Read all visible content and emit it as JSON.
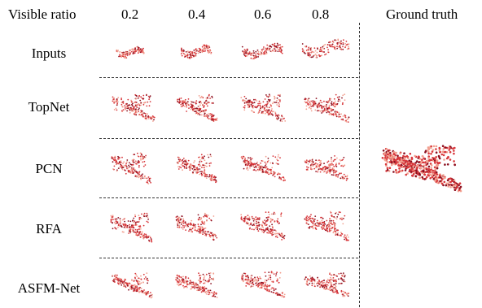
{
  "figure": {
    "header": {
      "visible_ratio_label": "Visible ratio",
      "ratios": [
        "0.2",
        "0.4",
        "0.6",
        "0.8"
      ],
      "ground_truth_label": "Ground truth"
    },
    "rows": [
      {
        "label": "Inputs",
        "kind": "partial"
      },
      {
        "label": "TopNet",
        "kind": "completion"
      },
      {
        "label": "PCN",
        "kind": "completion"
      },
      {
        "label": "RFA",
        "kind": "completion"
      },
      {
        "label": "ASFM-Net",
        "kind": "completion"
      }
    ],
    "colors": {
      "point_dark": "#8b1020",
      "point_mid": "#d8383c",
      "point_light": "#f2a090",
      "separator": "#333333"
    },
    "icons": [
      "point-cloud-airplane"
    ]
  }
}
